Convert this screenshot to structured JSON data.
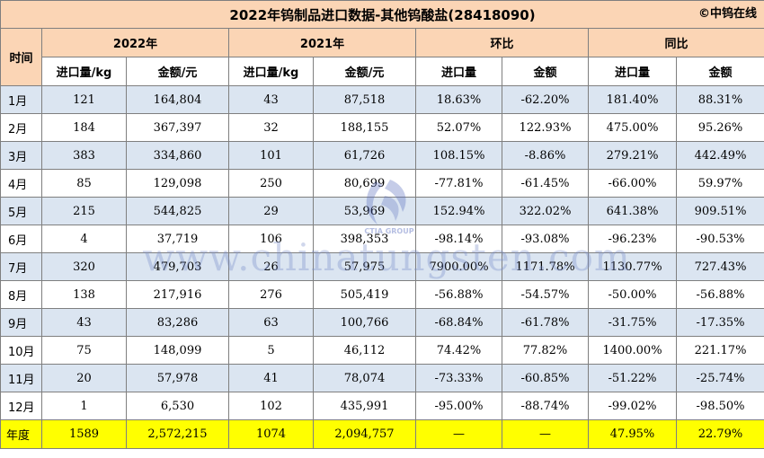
{
  "title": "2022年钨制品进口数据-其他钨酸盐(28418090)",
  "brand": "©中钨在线",
  "watermark": "www.chinatungsten.com",
  "logo_text": "CTIA GROUP",
  "headers": {
    "time": "时间",
    "y2022": "2022年",
    "y2021": "2021年",
    "mom": "环比",
    "yoy": "同比",
    "qty": "进口量/kg",
    "amt": "金额/元",
    "qty_short": "进口量",
    "amt_short": "金额"
  },
  "rows": [
    {
      "month": "1月",
      "q22": "121",
      "a22": "164,804",
      "q21": "43",
      "a21": "87,518",
      "mq": "18.63%",
      "ma": "-62.20%",
      "yq": "181.40%",
      "ya": "88.31%"
    },
    {
      "month": "2月",
      "q22": "184",
      "a22": "367,397",
      "q21": "32",
      "a21": "188,155",
      "mq": "52.07%",
      "ma": "122.93%",
      "yq": "475.00%",
      "ya": "95.26%"
    },
    {
      "month": "3月",
      "q22": "383",
      "a22": "334,860",
      "q21": "101",
      "a21": "61,726",
      "mq": "108.15%",
      "ma": "-8.86%",
      "yq": "279.21%",
      "ya": "442.49%"
    },
    {
      "month": "4月",
      "q22": "85",
      "a22": "129,098",
      "q21": "250",
      "a21": "80,699",
      "mq": "-77.81%",
      "ma": "-61.45%",
      "yq": "-66.00%",
      "ya": "59.97%"
    },
    {
      "month": "5月",
      "q22": "215",
      "a22": "544,825",
      "q21": "29",
      "a21": "53,969",
      "mq": "152.94%",
      "ma": "322.02%",
      "yq": "641.38%",
      "ya": "909.51%"
    },
    {
      "month": "6月",
      "q22": "4",
      "a22": "37,719",
      "q21": "106",
      "a21": "398,353",
      "mq": "-98.14%",
      "ma": "-93.08%",
      "yq": "-96.23%",
      "ya": "-90.53%"
    },
    {
      "month": "7月",
      "q22": "320",
      "a22": "479,703",
      "q21": "26",
      "a21": "57,975",
      "mq": "7900.00%",
      "ma": "1171.78%",
      "yq": "1130.77%",
      "ya": "727.43%"
    },
    {
      "month": "8月",
      "q22": "138",
      "a22": "217,916",
      "q21": "276",
      "a21": "505,419",
      "mq": "-56.88%",
      "ma": "-54.57%",
      "yq": "-50.00%",
      "ya": "-56.88%"
    },
    {
      "month": "9月",
      "q22": "43",
      "a22": "83,286",
      "q21": "63",
      "a21": "100,766",
      "mq": "-68.84%",
      "ma": "-61.78%",
      "yq": "-31.75%",
      "ya": "-17.35%"
    },
    {
      "month": "10月",
      "q22": "75",
      "a22": "148,099",
      "q21": "5",
      "a21": "46,112",
      "mq": "74.42%",
      "ma": "77.82%",
      "yq": "1400.00%",
      "ya": "221.17%"
    },
    {
      "month": "11月",
      "q22": "20",
      "a22": "57,978",
      "q21": "41",
      "a21": "78,074",
      "mq": "-73.33%",
      "ma": "-60.85%",
      "yq": "-51.22%",
      "ya": "-25.74%"
    },
    {
      "month": "12月",
      "q22": "1",
      "a22": "6,530",
      "q21": "102",
      "a21": "435,991",
      "mq": "-95.00%",
      "ma": "-88.74%",
      "yq": "-99.02%",
      "ya": "-98.50%"
    }
  ],
  "total": {
    "month": "年度",
    "q22": "1589",
    "a22": "2,572,215",
    "q21": "1074",
    "a21": "2,094,757",
    "mq": "—",
    "ma": "—",
    "yq": "47.95%",
    "ya": "22.79%"
  },
  "colors": {
    "header_bg": "#fbd5b5",
    "band": "#dbe5f1",
    "total_bg": "#ffff00",
    "positive": "#ff0000",
    "negative": "#00a651"
  }
}
